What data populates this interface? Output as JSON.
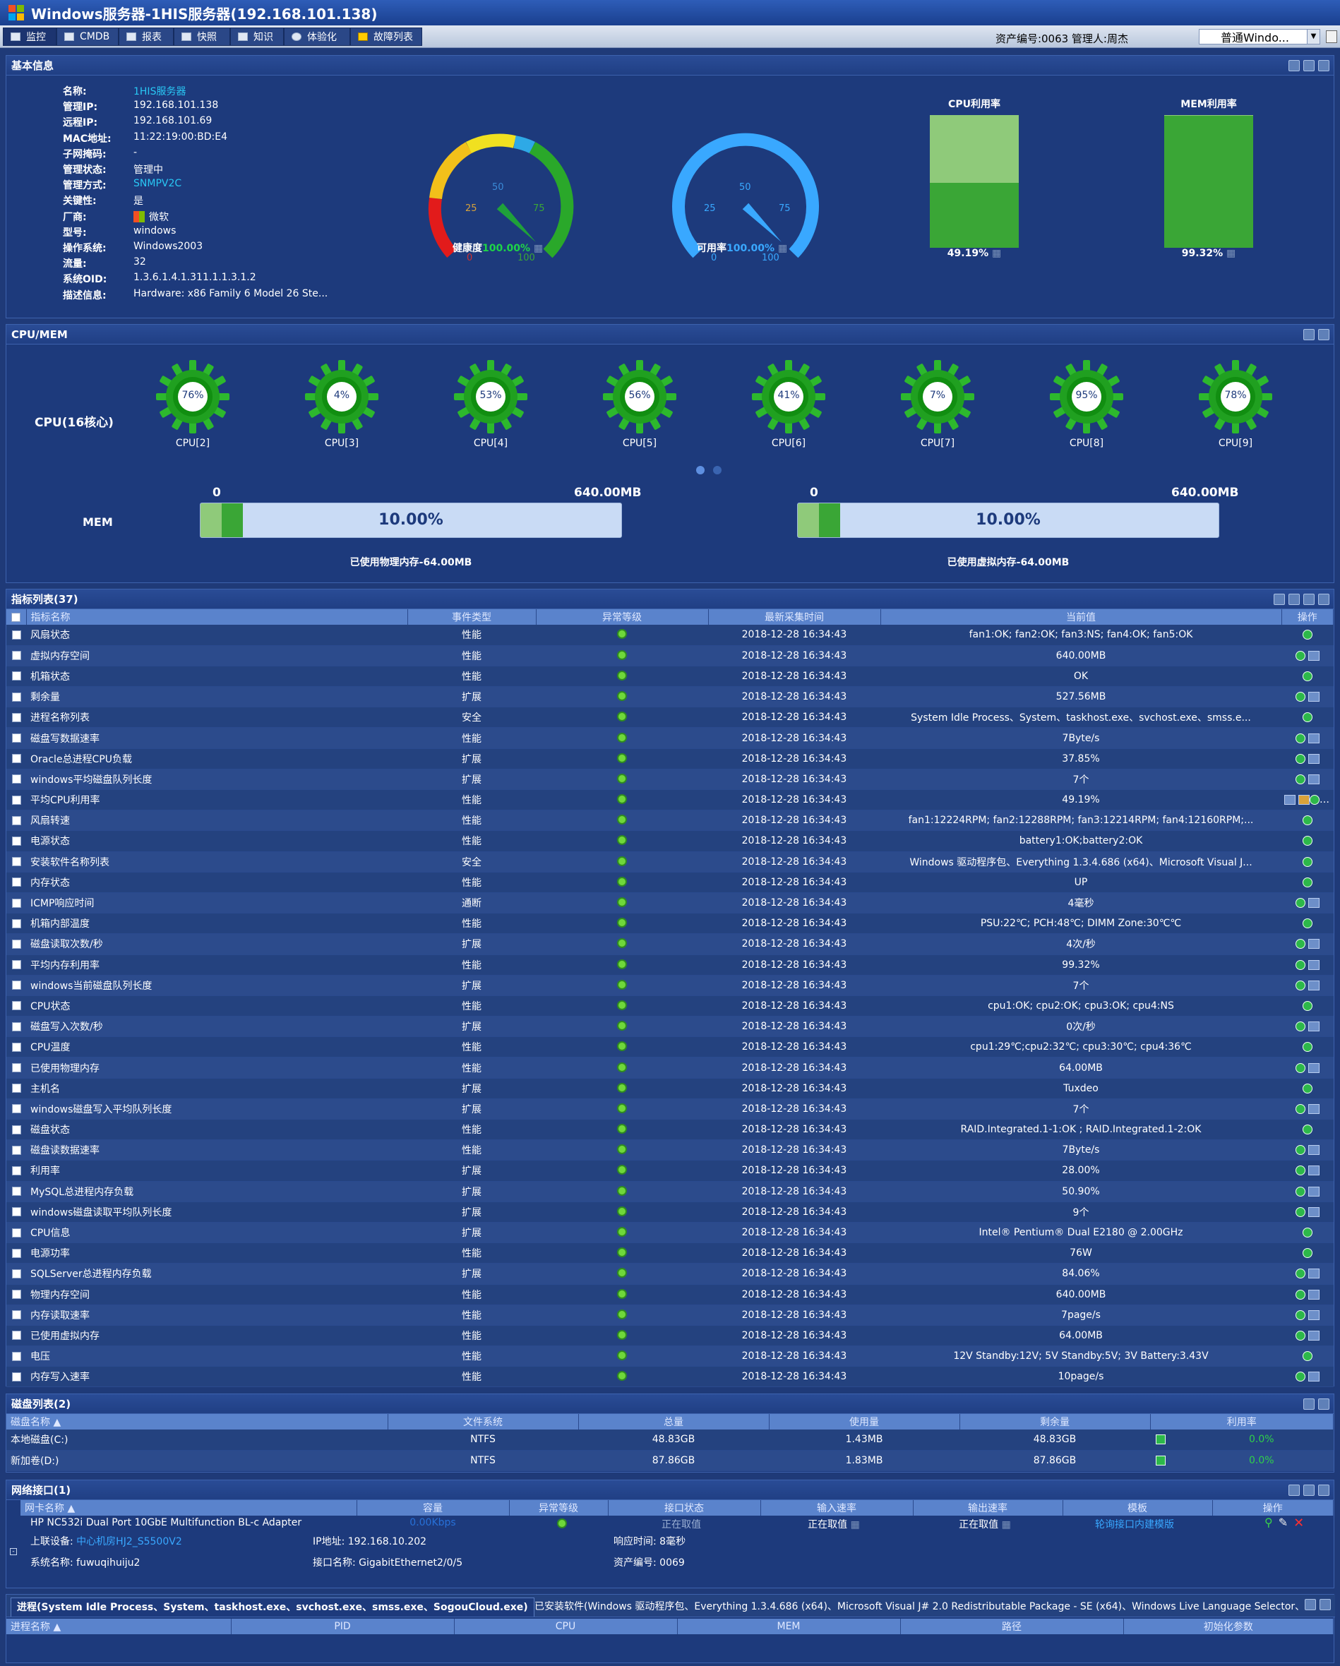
{
  "window": {
    "title": "Windows服务器-1HIS服务器(192.168.101.138)"
  },
  "tabs": [
    {
      "label": "监控",
      "active": true
    },
    {
      "label": "CMDB"
    },
    {
      "label": "报表"
    },
    {
      "label": "快照"
    },
    {
      "label": "知识"
    },
    {
      "label": "体验化"
    },
    {
      "label": "故障列表"
    }
  ],
  "header": {
    "asset_text": "资产编号:0063  管理人:周杰",
    "template_select": "普通Windo..."
  },
  "basic": {
    "title": "基本信息",
    "fields": [
      {
        "k": "名称:",
        "v": "1HIS服务器",
        "style": "cyan"
      },
      {
        "k": "管理IP:",
        "v": "192.168.101.138"
      },
      {
        "k": "远程IP:",
        "v": "192.168.101.69"
      },
      {
        "k": "MAC地址:",
        "v": "11:22:19:00:BD:E4"
      },
      {
        "k": "子网掩码:",
        "v": "-"
      },
      {
        "k": "管理状态:",
        "v": "管理中"
      },
      {
        "k": "管理方式:",
        "v": "SNMPV2C",
        "style": "cyan"
      },
      {
        "k": "关键性:",
        "v": "是"
      },
      {
        "k": "厂商:",
        "v": "微软"
      },
      {
        "k": "型号:",
        "v": "windows"
      },
      {
        "k": "操作系统:",
        "v": "Windows2003"
      },
      {
        "k": "流量:",
        "v": "32"
      },
      {
        "k": "系统OID:",
        "v": "1.3.6.1.4.1.311.1.1.3.1.2"
      },
      {
        "k": "描述信息:",
        "v": "Hardware: x86 Family 6 Model 26 Ste..."
      }
    ],
    "health": {
      "label": "健康度",
      "value": "100.00%",
      "ticks": [
        "0",
        "25",
        "50",
        "75",
        "100"
      ],
      "fraction": 1.0
    },
    "avail": {
      "label": "可用率",
      "value": "100.00%",
      "ticks": [
        "0",
        "25",
        "50",
        "75",
        "100"
      ],
      "fraction": 1.0
    },
    "cpu_bar": {
      "label": "CPU利用率",
      "value": "49.19%",
      "fraction": 0.4919
    },
    "mem_bar": {
      "label": "MEM利用率",
      "value": "99.32%",
      "fraction": 0.9932
    }
  },
  "cpumem": {
    "title": "CPU/MEM",
    "cpu_label": "CPU(16核心)",
    "cpus": [
      {
        "name": "CPU[2]",
        "pct": "76%"
      },
      {
        "name": "CPU[3]",
        "pct": "4%"
      },
      {
        "name": "CPU[4]",
        "pct": "53%"
      },
      {
        "name": "CPU[5]",
        "pct": "56%"
      },
      {
        "name": "CPU[6]",
        "pct": "41%"
      },
      {
        "name": "CPU[7]",
        "pct": "7%"
      },
      {
        "name": "CPU[8]",
        "pct": "95%"
      },
      {
        "name": "CPU[9]",
        "pct": "78%"
      }
    ],
    "mem_label": "MEM",
    "phys": {
      "min": "0",
      "max": "640.00MB",
      "pct": "10.00%",
      "fraction": 0.1,
      "caption": "已使用物理内存-64.00MB"
    },
    "virt": {
      "min": "0",
      "max": "640.00MB",
      "pct": "10.00%",
      "fraction": 0.1,
      "caption": "已使用虚拟内存-64.00MB"
    }
  },
  "metrics": {
    "title": "指标列表(37)",
    "headers": [
      "指标名称",
      "事件类型",
      "异常等级",
      "最新采集时间",
      "当前值",
      "操作"
    ],
    "rows": [
      [
        "风扇状态",
        "性能",
        "2018-12-28 16:34:43",
        "fan1:OK; fan2:OK; fan3:NS; fan4:OK; fan5:OK",
        1
      ],
      [
        "虚拟内存空间",
        "性能",
        "2018-12-28 16:34:43",
        "640.00MB",
        2
      ],
      [
        "机箱状态",
        "性能",
        "2018-12-28 16:34:43",
        "OK",
        1
      ],
      [
        "剩余量",
        "扩展",
        "2018-12-28 16:34:43",
        "527.56MB",
        2
      ],
      [
        "进程名称列表",
        "安全",
        "2018-12-28 16:34:43",
        "System Idle Process、System、taskhost.exe、svchost.exe、smss.e...",
        1
      ],
      [
        "磁盘写数据速率",
        "性能",
        "2018-12-28 16:34:43",
        "7Byte/s",
        2
      ],
      [
        "Oracle总进程CPU负载",
        "扩展",
        "2018-12-28 16:34:43",
        "37.85%",
        2
      ],
      [
        "windows平均磁盘队列长度",
        "扩展",
        "2018-12-28 16:34:43",
        "7个",
        2
      ],
      [
        "平均CPU利用率",
        "性能",
        "2018-12-28 16:34:43",
        "49.19%",
        3
      ],
      [
        "风扇转速",
        "性能",
        "2018-12-28 16:34:43",
        "fan1:12224RPM; fan2:12288RPM; fan3:12214RPM; fan4:12160RPM;...",
        1
      ],
      [
        "电源状态",
        "性能",
        "2018-12-28 16:34:43",
        "battery1:OK;battery2:OK",
        1
      ],
      [
        "安装软件名称列表",
        "安全",
        "2018-12-28 16:34:43",
        "Windows 驱动程序包、Everything 1.3.4.686 (x64)、Microsoft Visual J...",
        1
      ],
      [
        "内存状态",
        "性能",
        "2018-12-28 16:34:43",
        "UP",
        1
      ],
      [
        "ICMP响应时间",
        "通断",
        "2018-12-28 16:34:43",
        "4毫秒",
        2
      ],
      [
        "机箱内部温度",
        "性能",
        "2018-12-28 16:34:43",
        "PSU:22℃; PCH:48℃; DIMM Zone:30℃℃",
        1
      ],
      [
        "磁盘读取次数/秒",
        "扩展",
        "2018-12-28 16:34:43",
        "4次/秒",
        2
      ],
      [
        "平均内存利用率",
        "性能",
        "2018-12-28 16:34:43",
        "99.32%",
        2
      ],
      [
        "windows当前磁盘队列长度",
        "扩展",
        "2018-12-28 16:34:43",
        "7个",
        2
      ],
      [
        "CPU状态",
        "性能",
        "2018-12-28 16:34:43",
        "cpu1:OK; cpu2:OK; cpu3:OK; cpu4:NS",
        1
      ],
      [
        "磁盘写入次数/秒",
        "扩展",
        "2018-12-28 16:34:43",
        "0次/秒",
        2
      ],
      [
        "CPU温度",
        "性能",
        "2018-12-28 16:34:43",
        "cpu1:29℃;cpu2:32℃; cpu3:30℃; cpu4:36℃",
        1
      ],
      [
        "已使用物理内存",
        "性能",
        "2018-12-28 16:34:43",
        "64.00MB",
        2
      ],
      [
        "主机名",
        "扩展",
        "2018-12-28 16:34:43",
        "Tuxdeo",
        1
      ],
      [
        "windows磁盘写入平均队列长度",
        "扩展",
        "2018-12-28 16:34:43",
        "7个",
        2
      ],
      [
        "磁盘状态",
        "性能",
        "2018-12-28 16:34:43",
        "RAID.Integrated.1-1:OK ; RAID.Integrated.1-2:OK",
        1
      ],
      [
        "磁盘读数据速率",
        "性能",
        "2018-12-28 16:34:43",
        "7Byte/s",
        2
      ],
      [
        "利用率",
        "扩展",
        "2018-12-28 16:34:43",
        "28.00%",
        2
      ],
      [
        "MySQL总进程内存负载",
        "扩展",
        "2018-12-28 16:34:43",
        "50.90%",
        2
      ],
      [
        "windows磁盘读取平均队列长度",
        "扩展",
        "2018-12-28 16:34:43",
        "9个",
        2
      ],
      [
        "CPU信息",
        "扩展",
        "2018-12-28 16:34:43",
        "Intel® Pentium® Dual E2180 @ 2.00GHz",
        1
      ],
      [
        "电源功率",
        "性能",
        "2018-12-28 16:34:43",
        "76W",
        1
      ],
      [
        "SQLServer总进程内存负载",
        "扩展",
        "2018-12-28 16:34:43",
        "84.06%",
        2
      ],
      [
        "物理内存空间",
        "性能",
        "2018-12-28 16:34:43",
        "640.00MB",
        2
      ],
      [
        "内存读取速率",
        "性能",
        "2018-12-28 16:34:43",
        "7page/s",
        2
      ],
      [
        "已使用虚拟内存",
        "性能",
        "2018-12-28 16:34:43",
        "64.00MB",
        2
      ],
      [
        "电压",
        "性能",
        "2018-12-28 16:34:43",
        "12V Standby:12V; 5V Standby:5V; 3V Battery:3.43V",
        1
      ],
      [
        "内存写入速率",
        "性能",
        "2018-12-28 16:34:43",
        "10page/s",
        2
      ]
    ]
  },
  "disks": {
    "title": "磁盘列表(2)",
    "headers": [
      "磁盘名称",
      "文件系统",
      "总量",
      "使用量",
      "剩余量",
      "利用率"
    ],
    "rows": [
      [
        "本地磁盘(C:)",
        "NTFS",
        "48.83GB",
        "1.43MB",
        "48.83GB",
        "0.0%"
      ],
      [
        "新加卷(D:)",
        "NTFS",
        "87.86GB",
        "1.83MB",
        "87.86GB",
        "0.0%"
      ]
    ]
  },
  "network": {
    "title": "网络接口(1)",
    "headers": [
      "网卡名称",
      "容量",
      "异常等级",
      "接口状态",
      "输入速率",
      "输出速率",
      "模板",
      "操作"
    ],
    "row": {
      "name": "HP NC532i Dual Port 10GbE Multifunction BL-c Adapter",
      "capacity": "0.00Kbps",
      "status": "正在取值",
      "in": "正在取值",
      "out": "正在取值",
      "template": "轮询接口内建模版"
    },
    "details": [
      {
        "k": "上联设备:",
        "v": "中心机房HJ2_S5500V2"
      },
      {
        "k": "IP地址:",
        "v": "192.168.10.202"
      },
      {
        "k": "响应时间:",
        "v": "8毫秒"
      },
      {
        "k": "系统名称:",
        "v": "fuwuqihuiju2"
      },
      {
        "k": "接口名称:",
        "v": "GigabitEthernet2/0/5"
      },
      {
        "k": "资产编号:",
        "v": "0069"
      }
    ]
  },
  "bottom": {
    "tab1": "进程(System Idle Process、System、taskhost.exe、svchost.exe、smss.exe、SogouCloud.exe)",
    "tab2": "已安装软件(Windows 驱动程序包、Everything 1.3.4.686 (x64)、Microsoft Visual J# 2.0 Redistributable Package - SE (x64)、Windows Live Language Selector、Torto",
    "headers": [
      "进程名称",
      "PID",
      "CPU",
      "MEM",
      "路径",
      "初始化参数"
    ]
  },
  "colors": {
    "green": "#3aa636",
    "lightgreen": "#8fca7a",
    "accent": "#39a8ff",
    "panel": "#1d3a7c"
  }
}
